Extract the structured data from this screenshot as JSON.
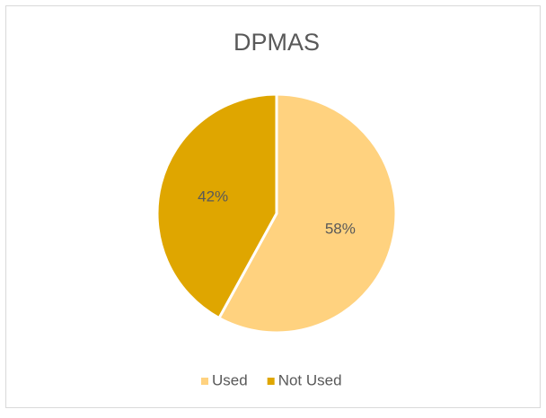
{
  "chart_data": {
    "type": "pie",
    "title": "DPMAS",
    "categories": [
      "Used",
      "Not Used"
    ],
    "values": [
      58,
      42
    ],
    "value_labels": [
      "58%",
      "42%"
    ],
    "colors": [
      "#ffd27f",
      "#dfa600"
    ],
    "legend": "bottom"
  }
}
